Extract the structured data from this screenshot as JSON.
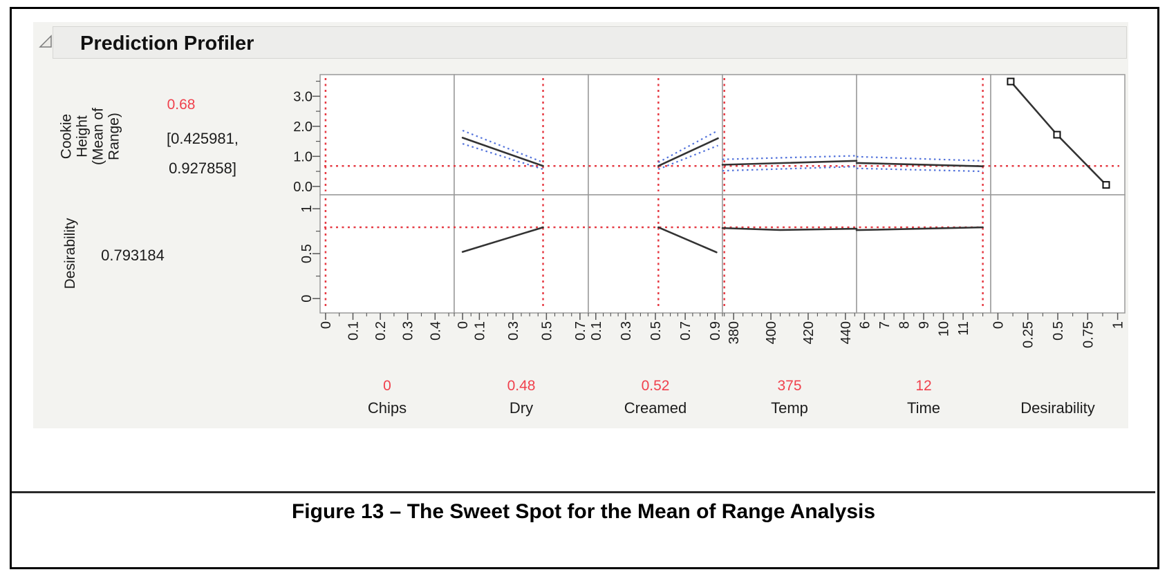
{
  "window": {
    "caption": "Figure 13 – The Sweet Spot for the Mean of Range Analysis"
  },
  "profiler": {
    "title": "Prediction Profiler",
    "responses": [
      {
        "name_lines": [
          "Cookie",
          "Height",
          "(Mean of",
          "Range)"
        ],
        "value": "0.68",
        "ci_lines": [
          "[0.425981,",
          "0.927858]"
        ]
      },
      {
        "name_lines": [
          "Desirability"
        ],
        "value": "0.793184"
      }
    ]
  },
  "chart_data": {
    "type": "profiler",
    "title": "Prediction Profiler",
    "response_rows": [
      {
        "label": "Cookie Height (Mean of Range)",
        "predicted_value": 0.68,
        "confidence_interval": [
          0.425981,
          0.927858
        ],
        "axis": {
          "min": -0.28,
          "max": 3.72,
          "major": [
            0,
            1,
            2,
            3
          ],
          "labels": [
            "0.0",
            "1.0",
            "2.0",
            "3.0"
          ],
          "minor": [
            0.5,
            1.5,
            2.5,
            3.5
          ],
          "rotate_labels": false
        },
        "crosshair_y": 0.68,
        "crosshair_cols": [
          0,
          1,
          2,
          3,
          4,
          5
        ],
        "cells": [
          {},
          {
            "line": [
              [
                0,
                1.62
              ],
              [
                0.48,
                0.68
              ]
            ],
            "upper": [
              [
                0,
                1.86
              ],
              [
                0.48,
                0.8
              ]
            ],
            "lower": [
              [
                0,
                1.42
              ],
              [
                0.48,
                0.57
              ]
            ]
          },
          {
            "line": [
              [
                0.52,
                0.68
              ],
              [
                0.92,
                1.6
              ]
            ],
            "upper": [
              [
                0.52,
                0.8
              ],
              [
                0.92,
                1.86
              ]
            ],
            "lower": [
              [
                0.52,
                0.57
              ],
              [
                0.92,
                1.36
              ]
            ]
          },
          {
            "line": [
              [
                374,
                0.72
              ],
              [
                446,
                0.85
              ]
            ],
            "upper": [
              [
                374,
                0.9
              ],
              [
                446,
                1.02
              ]
            ],
            "lower": [
              [
                374,
                0.52
              ],
              [
                446,
                0.66
              ]
            ]
          },
          {
            "line": [
              [
                5.6,
                0.78
              ],
              [
                12,
                0.67
              ]
            ],
            "upper": [
              [
                5.6,
                0.99
              ],
              [
                12,
                0.85
              ]
            ],
            "lower": [
              [
                5.6,
                0.6
              ],
              [
                12,
                0.5
              ]
            ]
          },
          {
            "line": [
              [
                0.107,
                3.49
              ],
              [
                0.494,
                1.72
              ],
              [
                0.904,
                0.05
              ]
            ],
            "markers": [
              [
                0.107,
                3.49
              ],
              [
                0.494,
                1.72
              ],
              [
                0.904,
                0.05
              ]
            ]
          }
        ]
      },
      {
        "label": "Desirability",
        "predicted_value": 0.793184,
        "axis": {
          "min": -0.16,
          "max": 1.155,
          "major": [
            0,
            0.5,
            1
          ],
          "labels": [
            "0",
            "0.5",
            "1"
          ],
          "minor": [
            0.25,
            0.75
          ],
          "rotate_labels": true
        },
        "crosshair_y": 0.793184,
        "crosshair_cols": [
          0,
          1,
          2,
          3,
          4
        ],
        "cells": [
          {},
          {
            "line": [
              [
                0,
                0.52
              ],
              [
                0.48,
                0.793
              ]
            ]
          },
          {
            "line": [
              [
                0.52,
                0.793
              ],
              [
                0.91,
                0.515
              ]
            ]
          },
          {
            "line": [
              [
                374,
                0.785
              ],
              [
                405,
                0.763
              ],
              [
                446,
                0.778
              ]
            ]
          },
          {
            "line": [
              [
                5.6,
                0.762
              ],
              [
                12,
                0.793
              ]
            ]
          },
          {}
        ]
      }
    ],
    "factor_columns": [
      {
        "name": "Chips",
        "value_label": "0",
        "value": 0,
        "axis": {
          "min": -0.02,
          "max": 0.47,
          "major": [
            0,
            0.1,
            0.2,
            0.3,
            0.4
          ],
          "labels": [
            "0",
            "0.1",
            "0.2",
            "0.3",
            "0.4"
          ],
          "minor_step": 0.05
        }
      },
      {
        "name": "Dry",
        "value_label": "0.48",
        "value": 0.48,
        "axis": {
          "min": -0.05,
          "max": 0.75,
          "major": [
            0,
            0.1,
            0.3,
            0.5,
            0.7
          ],
          "labels": [
            "0",
            "0.1",
            "0.3",
            "0.5",
            "0.7"
          ],
          "minor_step": 0.05
        }
      },
      {
        "name": "Creamed",
        "value_label": "0.52",
        "value": 0.52,
        "axis": {
          "min": 0.05,
          "max": 0.95,
          "major": [
            0.1,
            0.3,
            0.5,
            0.7,
            0.9
          ],
          "labels": [
            "0.1",
            "0.3",
            "0.5",
            "0.7",
            "0.9"
          ],
          "minor_step": 0.05
        }
      },
      {
        "name": "Temp",
        "value_label": "375",
        "value": 375,
        "axis": {
          "min": 374,
          "max": 446,
          "major": [
            380,
            400,
            420,
            440
          ],
          "labels": [
            "380",
            "400",
            "420",
            "440"
          ],
          "minor_step": 5
        }
      },
      {
        "name": "Time",
        "value_label": "12",
        "value": 12,
        "axis": {
          "min": 5.6,
          "max": 12.4,
          "major": [
            6,
            7,
            8,
            9,
            10,
            11
          ],
          "labels": [
            "6",
            "7",
            "8",
            "9",
            "10",
            "11"
          ],
          "minor_step": 0.5
        }
      },
      {
        "name": "Desirability",
        "value_label": null,
        "value": null,
        "axis": {
          "min": -0.06,
          "max": 1.06,
          "major": [
            0,
            0.25,
            0.5,
            0.75,
            1
          ],
          "labels": [
            "0",
            "0.25",
            "0.5",
            "0.75",
            "1"
          ],
          "minor_step": 0.125
        }
      }
    ],
    "colors": {
      "crosshair": "#e63b44",
      "band": "#5272db",
      "trace": "#333333",
      "value_text": "#f0414d",
      "grid": "#999999",
      "tick_text": "#1b1b1b"
    }
  }
}
